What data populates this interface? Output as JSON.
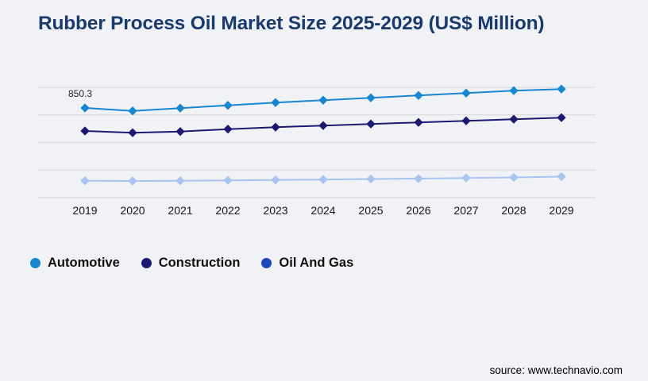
{
  "page": {
    "title": "Rubber Process Oil Market Size 2025-2029 (US$ Million)",
    "source": "source: www.technavio.com",
    "background_color": "#f1f2f6",
    "title_color": "#1a3a6e"
  },
  "chart_data": {
    "type": "line",
    "title": "Rubber Process Oil Market Size 2025-2029 (US$ Million)",
    "categories": [
      "2019",
      "2020",
      "2021",
      "2022",
      "2023",
      "2024",
      "2025",
      "2026",
      "2027",
      "2028",
      "2029"
    ],
    "series": [
      {
        "name": "Automotive",
        "color": "#1787d1",
        "line_color": "#1787d1",
        "values": [
          850.3,
          829.0,
          849.2,
          869.3,
          889.4,
          906.7,
          924.0,
          941.2,
          958.5,
          975.8,
          987.3
        ]
      },
      {
        "name": "Construction",
        "color": "#1c1a70",
        "line_color": "#1c1a70",
        "values": [
          683.4,
          670.8,
          679.4,
          696.7,
          711.1,
          722.6,
          734.1,
          745.6,
          757.1,
          768.6,
          780.1
        ]
      },
      {
        "name": "Oil And Gas",
        "color": "#1e45c0",
        "line_color": "#a9c4f0",
        "values": [
          322.6,
          320.9,
          322.6,
          325.5,
          328.4,
          331.2,
          335.3,
          338.1,
          342.7,
          346.8,
          352.5
        ]
      }
    ],
    "first_point_label": "850.3",
    "first_point_label_series": "Automotive",
    "first_point_label_category": "2019",
    "xlabel": "",
    "ylabel": "",
    "ylim": [
      200,
      1000
    ],
    "grid": "horizontal",
    "gridline_count": 5,
    "gridline_color": "#d6d6d8",
    "marker": "diamond",
    "legend_position": "bottom-left",
    "y_axis_labels_visible": false
  }
}
